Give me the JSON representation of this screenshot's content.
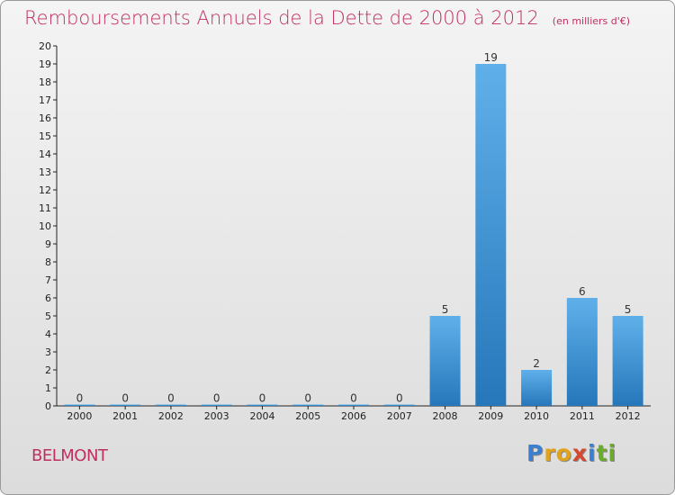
{
  "chart_data": {
    "type": "bar",
    "title": "Remboursements Annuels de la Dette de 2000 à 2012",
    "subtitle": "(en milliers d'€)",
    "categories": [
      "2000",
      "2001",
      "2002",
      "2003",
      "2004",
      "2005",
      "2006",
      "2007",
      "2008",
      "2009",
      "2010",
      "2011",
      "2012"
    ],
    "values": [
      0,
      0,
      0,
      0,
      0,
      0,
      0,
      0,
      5,
      19,
      2,
      6,
      5
    ],
    "ylim": [
      0,
      20
    ],
    "yticks": [
      0,
      1,
      2,
      3,
      4,
      5,
      6,
      7,
      8,
      9,
      10,
      11,
      12,
      13,
      14,
      15,
      16,
      17,
      18,
      19,
      20
    ],
    "xlabel": "",
    "ylabel": "",
    "grid": false,
    "bar_color": "#3a8fd4",
    "bar_color_light": "#5fb0ea",
    "bar_color_dark": "#2677ba"
  },
  "footer": {
    "city": "BELMONT",
    "logo": {
      "text": "Proxiti",
      "letters": [
        "P",
        "r",
        "o",
        "x",
        "i",
        "t",
        "i"
      ],
      "colors": [
        "#3b7fd0",
        "#e2a21a",
        "#e2a21a",
        "#d5472f",
        "#3b7fd0",
        "#6aab2c",
        "#6aab2c"
      ]
    }
  },
  "colors": {
    "title": "#c0305f",
    "axis": "#222222"
  }
}
